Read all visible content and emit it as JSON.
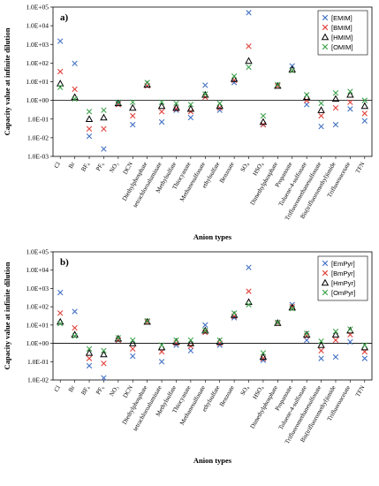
{
  "chart_data": [
    {
      "type": "scatter",
      "panel_label": "a)",
      "xlabel": "Anion types",
      "ylabel": "Capacity value at infinite dilution",
      "yscale": "log",
      "ylim": [
        0.001,
        100000
      ],
      "yticks": [
        "1.0E-03",
        "1.0E-02",
        "1.0E-01",
        "1.0E+00",
        "1.0E+01",
        "1.0E+02",
        "1.0E+03",
        "1.0E+04",
        "1.0E+05"
      ],
      "grid": false,
      "legend_position": "top-right",
      "categories": [
        "Cl",
        "Br",
        "BF4",
        "PF6",
        "NO3",
        "DCN",
        "Diethylphosphate",
        "tetrachloroaluminate",
        "Methylsulfate",
        "Thiocyanate",
        "Methanesulfonate",
        "ethylsulfate",
        "Benzoate",
        "SO4",
        "HSO4",
        "Dimethylphosphate",
        "Propanoate",
        "Toluene-4-sulfonate",
        "Trifluoromethanesulfonate",
        "Bis(trifluoromethyl)imide",
        "Trifluoroacetate",
        "TFN"
      ],
      "series": [
        {
          "name": "[EMIM]",
          "marker": "x",
          "color": "#4472c4",
          "values": [
            1500,
            95,
            0.012,
            0.0025,
            0.7,
            0.05,
            6,
            0.07,
            0.3,
            0.12,
            6.5,
            0.3,
            9,
            50000,
            0.05,
            6,
            70,
            0.6,
            0.04,
            0.05,
            0.35,
            0.08
          ]
        },
        {
          "name": "[BMIM]",
          "marker": "x",
          "color": "#e0413b",
          "values": [
            35,
            4,
            0.03,
            0.03,
            0.6,
            0.15,
            6,
            0.25,
            0.35,
            0.25,
            1.5,
            0.4,
            12,
            800,
            0.05,
            6,
            40,
            1,
            0.15,
            0.4,
            0.8,
            0.2
          ]
        },
        {
          "name": "[HMIM]",
          "marker": "triangle",
          "color": "#000000",
          "values": [
            8,
            1.5,
            0.1,
            0.12,
            0.7,
            0.4,
            7,
            0.5,
            0.4,
            0.35,
            2,
            0.5,
            14,
            130,
            0.07,
            6,
            45,
            1.5,
            0.3,
            1.2,
            2,
            0.5
          ]
        },
        {
          "name": "[OMIM]",
          "marker": "x",
          "color": "#3fa34d",
          "values": [
            5,
            1.2,
            0.25,
            0.3,
            0.8,
            0.8,
            9,
            0.8,
            0.7,
            0.6,
            2.2,
            0.7,
            20,
            60,
            0.15,
            7,
            40,
            2,
            0.7,
            2.5,
            3,
            1
          ]
        }
      ]
    },
    {
      "type": "scatter",
      "panel_label": "b)",
      "xlabel": "Anion types",
      "ylabel": "Capacity value at infinite dilution",
      "yscale": "log",
      "ylim": [
        0.01,
        100000
      ],
      "yticks": [
        "1.0E-02",
        "1.0E-01",
        "1.0E+00",
        "1.0E+01",
        "1.0E+02",
        "1.0E+03",
        "1.0E+04",
        "1.0E+05"
      ],
      "grid": false,
      "legend_position": "top-right",
      "categories": [
        "Cl",
        "Br",
        "BF4",
        "PF6",
        "NO3",
        "DCN",
        "Diethylphosphate",
        "tetrachloroaluminate",
        "Methylsulfate",
        "Thiocyanate",
        "Methanesulfonate",
        "ethylsulfate",
        "Benzoate",
        "SO4",
        "HSO4",
        "Dimethylphosphate",
        "Propanoate",
        "Toluene-4-sulfonate",
        "Trifluoromethanesulfonate",
        "Bis(trifluoromethyl)imide",
        "Trifluoroacetate",
        "TFN"
      ],
      "series": [
        {
          "name": "[EmPyr]",
          "marker": "x",
          "color": "#4472c4",
          "values": [
            600,
            55,
            0.06,
            0.013,
            1.5,
            0.2,
            15,
            0.1,
            0.8,
            0.4,
            10,
            0.8,
            25,
            14000,
            0.12,
            13,
            130,
            1.5,
            0.15,
            0.18,
            1.2,
            0.15
          ]
        },
        {
          "name": "[BmPyr]",
          "marker": "x",
          "color": "#e0413b",
          "values": [
            45,
            7,
            0.15,
            0.08,
            1.5,
            0.5,
            15,
            0.35,
            1,
            0.7,
            4,
            1,
            30,
            700,
            0.15,
            13,
            100,
            2.5,
            0.4,
            1.5,
            3,
            0.35
          ]
        },
        {
          "name": "[HmPyr]",
          "marker": "triangle",
          "color": "#000000",
          "values": [
            15,
            3,
            0.3,
            0.25,
            1.8,
            1,
            15,
            0.6,
            1.2,
            1,
            5,
            1.2,
            35,
            180,
            0.18,
            13,
            90,
            3,
            0.8,
            3,
            5,
            0.6
          ]
        },
        {
          "name": "[OmPyr]",
          "marker": "x",
          "color": "#3fa34d",
          "values": [
            12,
            2.5,
            0.5,
            0.4,
            2,
            1.5,
            17,
            0.8,
            1.5,
            1.5,
            5,
            1.5,
            45,
            130,
            0.3,
            14,
            80,
            3.5,
            1.3,
            4.5,
            6,
            0.8
          ]
        }
      ]
    }
  ],
  "category_display": [
    "Cl",
    "Br",
    "BF₄",
    "PF₆",
    "NO₃",
    "DCN",
    "Diethylphosphate",
    "tetrachloroaluminate",
    "Methylsulfate",
    "Thiocyanate",
    "Methanesulfonate",
    "ethylsulfate",
    "Benzoate",
    "SO₄",
    "HSO₄",
    "Dimethylphosphate",
    "Propanoate",
    "Toluene-4-sulfonate",
    "Trifluoromethanesulfonate",
    "Bis(trifluoromethyl)imide",
    "Trifluoroacetate",
    "TFN"
  ]
}
